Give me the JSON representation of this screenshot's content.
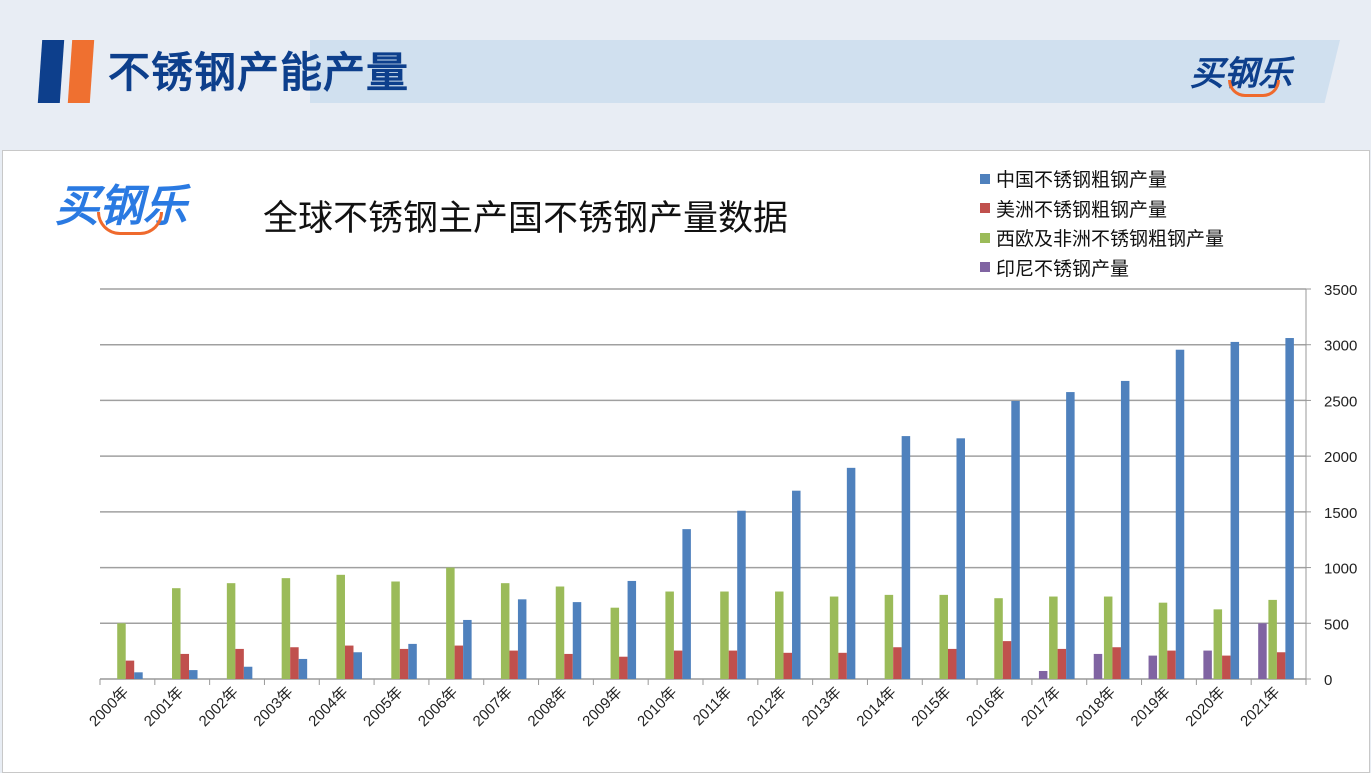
{
  "slide": {
    "title": "不锈钢产能产量",
    "logo_text": "买钢乐",
    "accent_colors": {
      "navy": "#0d3f8c",
      "orange": "#ef7030",
      "band": "#d0e0ef"
    }
  },
  "chart_data": {
    "type": "bar",
    "title": "全球不锈钢主产国不锈钢产量数据",
    "logo_text": "买钢乐",
    "xlabel": "",
    "ylabel": "",
    "ylim": [
      0,
      3500
    ],
    "yticks": [
      0,
      500,
      1000,
      1500,
      2000,
      2500,
      3000,
      3500
    ],
    "y_axis_side": "right",
    "grid": true,
    "legend_position": "top-right",
    "categories": [
      "2000年",
      "2001年",
      "2002年",
      "2003年",
      "2004年",
      "2005年",
      "2006年",
      "2007年",
      "2008年",
      "2009年",
      "2010年",
      "2011年",
      "2012年",
      "2013年",
      "2014年",
      "2015年",
      "2016年",
      "2017年",
      "2018年",
      "2019年",
      "2020年",
      "2021年"
    ],
    "series": [
      {
        "name": "中国不锈钢粗钢产量",
        "color": "#4f81bd",
        "values": [
          60,
          80,
          110,
          180,
          240,
          315,
          530,
          715,
          690,
          880,
          1345,
          1510,
          1690,
          1895,
          2180,
          2160,
          2495,
          2575,
          2675,
          2955,
          3025,
          3060
        ]
      },
      {
        "name": "美洲不锈钢粗钢产量",
        "color": "#c0504d",
        "values": [
          165,
          225,
          270,
          285,
          300,
          270,
          300,
          255,
          225,
          200,
          255,
          255,
          235,
          235,
          285,
          270,
          340,
          270,
          285,
          255,
          210,
          240
        ]
      },
      {
        "name": "西欧及非洲不锈钢粗钢产量",
        "color": "#9bbb59",
        "values": [
          500,
          815,
          860,
          905,
          935,
          875,
          1000,
          860,
          830,
          640,
          785,
          785,
          785,
          740,
          755,
          755,
          725,
          740,
          740,
          685,
          625,
          710
        ]
      },
      {
        "name": "印尼不锈钢产量",
        "color": "#8064a2",
        "values": [
          null,
          null,
          null,
          null,
          null,
          null,
          null,
          null,
          null,
          null,
          null,
          null,
          null,
          null,
          null,
          null,
          null,
          72,
          225,
          210,
          255,
          500
        ]
      }
    ],
    "bar_order_within_group": [
      "印尼不锈钢产量",
      "西欧及非洲不锈钢粗钢产量",
      "美洲不锈钢粗钢产量",
      "中国不锈钢粗钢产量"
    ]
  }
}
